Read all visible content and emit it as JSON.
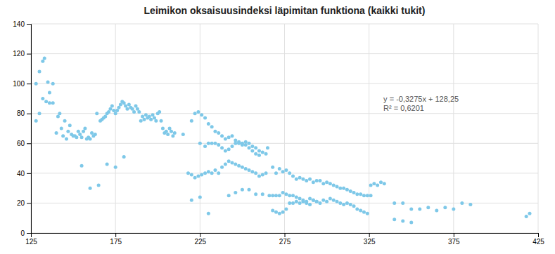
{
  "chart_data": {
    "type": "scatter",
    "title": "Leimikon oksaisuusindeksi läpimitan funktiona (kaikki tukit)",
    "annotations": [
      "y = -0,3275x + 128,25",
      "R² = 0,6201"
    ],
    "color": "#7ec8e8",
    "xlim": [
      125,
      425
    ],
    "ylim": [
      0,
      140
    ],
    "xticks": [
      125,
      175,
      225,
      275,
      325,
      375,
      425
    ],
    "yticks": [
      0,
      20,
      40,
      60,
      80,
      100,
      120,
      140
    ],
    "grid": true,
    "x": [
      128,
      130,
      132,
      133,
      135,
      136,
      138,
      128,
      130,
      132,
      134,
      136,
      138,
      140,
      141,
      142,
      143,
      144,
      145,
      146,
      147,
      148,
      149,
      150,
      151,
      152,
      153,
      154,
      155,
      156,
      157,
      158,
      159,
      160,
      161,
      162,
      163,
      164,
      166,
      167,
      168,
      169,
      170,
      171,
      172,
      173,
      174,
      175,
      176,
      177,
      178,
      179,
      180,
      181,
      182,
      183,
      184,
      185,
      186,
      187,
      188,
      189,
      190,
      191,
      192,
      193,
      194,
      195,
      196,
      197,
      198,
      199,
      200,
      201,
      202,
      203,
      204,
      205,
      206,
      207,
      208,
      209,
      210,
      155,
      160,
      165,
      170,
      175,
      180,
      215,
      220,
      222,
      224,
      226,
      228,
      230,
      232,
      234,
      236,
      238,
      240,
      242,
      244,
      246,
      248,
      250,
      252,
      254,
      256,
      258,
      260,
      262,
      264,
      225,
      228,
      230,
      232,
      234,
      236,
      238,
      240,
      242,
      244,
      246,
      248,
      250,
      252,
      254,
      256,
      258,
      260,
      218,
      220,
      222,
      224,
      226,
      228,
      230,
      232,
      234,
      236,
      238,
      240,
      242,
      244,
      246,
      248,
      250,
      252,
      254,
      256,
      258,
      260,
      262,
      264,
      220,
      225,
      230,
      242,
      246,
      250,
      254,
      258,
      262,
      265,
      268,
      270,
      272,
      274,
      276,
      278,
      280,
      282,
      284,
      286,
      288,
      290,
      292,
      294,
      296,
      298,
      300,
      302,
      304,
      306,
      308,
      310,
      312,
      314,
      316,
      318,
      320,
      322,
      324,
      326,
      266,
      268,
      270,
      272,
      274,
      276,
      278,
      280,
      282,
      284,
      286,
      288,
      290,
      292,
      294,
      268,
      270,
      272,
      274,
      276,
      278,
      280,
      282,
      284,
      286,
      288,
      290,
      292,
      294,
      296,
      298,
      300,
      302,
      304,
      306,
      308,
      310,
      312,
      314,
      316,
      318,
      320,
      322,
      324,
      326,
      328,
      330,
      332,
      334,
      340,
      345,
      350,
      355,
      360,
      365,
      370,
      375,
      380,
      385,
      340,
      345,
      350,
      420,
      418
    ],
    "values": [
      100,
      108,
      115,
      117,
      101,
      94,
      100,
      75,
      80,
      90,
      88,
      87,
      87,
      67,
      78,
      80,
      70,
      65,
      75,
      63,
      68,
      72,
      66,
      65,
      65,
      64,
      68,
      66,
      64,
      68,
      70,
      63,
      64,
      63,
      67,
      65,
      66,
      80,
      75,
      76,
      77,
      78,
      80,
      81,
      83,
      85,
      82,
      80,
      82,
      84,
      86,
      88,
      87,
      85,
      83,
      86,
      84,
      83,
      81,
      85,
      83,
      81,
      75,
      78,
      76,
      79,
      77,
      78,
      76,
      79,
      77,
      75,
      80,
      81,
      75,
      70,
      67,
      68,
      66,
      70,
      68,
      65,
      67,
      45,
      30,
      32,
      46,
      44,
      51,
      66,
      75,
      80,
      81,
      79,
      77,
      73,
      71,
      68,
      67,
      65,
      63,
      64,
      65,
      62,
      61,
      59,
      61,
      60,
      58,
      57,
      55,
      54,
      53,
      60,
      58,
      60,
      60,
      60,
      59,
      57,
      55,
      56,
      58,
      60,
      60,
      60,
      59,
      57,
      55,
      53,
      52,
      40,
      39,
      37,
      38,
      39,
      40,
      41,
      40,
      42,
      40,
      44,
      46,
      48,
      47,
      46,
      45,
      44,
      43,
      42,
      41,
      40,
      38,
      39,
      40,
      22,
      24,
      13,
      25,
      27,
      29,
      29,
      26,
      26,
      57,
      44,
      40,
      43,
      41,
      42,
      40,
      38,
      36,
      37,
      36,
      35,
      36,
      34,
      35,
      35,
      33,
      34,
      33,
      32,
      31,
      30,
      30,
      29,
      28,
      27,
      26,
      26,
      25,
      25,
      25,
      25,
      25,
      25,
      25,
      27,
      26,
      25,
      25,
      24,
      23,
      21,
      20,
      19,
      22,
      21,
      15,
      14,
      13,
      14,
      16,
      20,
      20,
      21,
      20,
      22,
      21,
      23,
      22,
      21,
      20,
      22,
      21,
      23,
      22,
      21,
      20,
      19,
      20,
      19,
      18,
      16,
      15,
      14,
      13,
      32,
      33,
      32,
      34,
      33,
      20,
      20,
      16,
      16,
      17,
      15,
      17,
      16,
      20,
      19,
      9,
      8,
      7,
      13,
      11
    ]
  }
}
